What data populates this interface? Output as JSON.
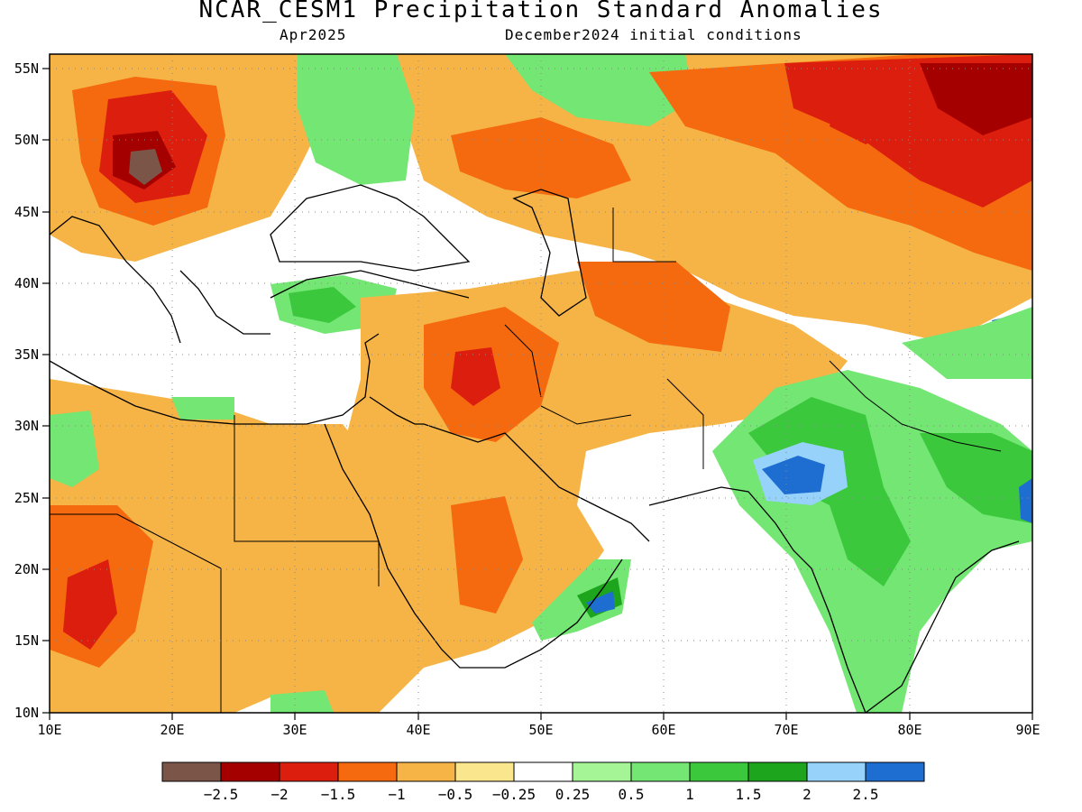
{
  "title": "NCAR_CESM1 Precipitation Standard Anomalies",
  "subtitle_left": "Apr2025",
  "subtitle_right": "December2024 initial conditions",
  "map": {
    "lon_range": [
      10,
      90
    ],
    "lat_range": [
      10,
      56
    ],
    "x_ticks": [
      "10E",
      "20E",
      "30E",
      "40E",
      "50E",
      "60E",
      "70E",
      "80E",
      "90E"
    ],
    "y_ticks": [
      "55N",
      "50N",
      "45N",
      "40N",
      "35N",
      "30N",
      "25N",
      "20N",
      "15N",
      "10N"
    ]
  },
  "colorbar": {
    "colors": [
      "#7a5548",
      "#a50000",
      "#dc1e0f",
      "#f5690f",
      "#f7b446",
      "#fae68c",
      "#ffffff",
      "#a5f596",
      "#73e673",
      "#3cc83c",
      "#1ea51e",
      "#96d2fa",
      "#1e6ed2"
    ],
    "labels": [
      "−2.5",
      "−2",
      "−1.5",
      "−1",
      "−0.5",
      "−0.25",
      "0.25",
      "0.5",
      "1",
      "1.5",
      "2",
      "2.5"
    ]
  },
  "colors": {
    "strong_dry": "#a50000",
    "dry": "#f5690f",
    "moderate_dry": "#f7b446",
    "slight_dry": "#fae68c",
    "slight_wet": "#a5f596",
    "wet": "#3cc83c",
    "very_wet": "#1e6ed2"
  }
}
